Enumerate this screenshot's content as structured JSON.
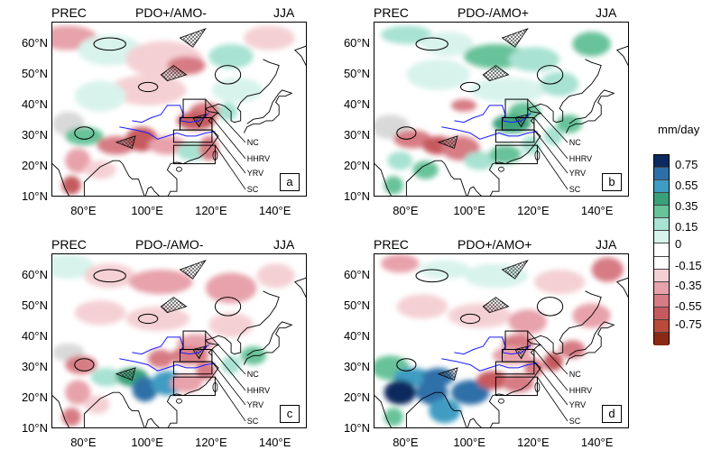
{
  "panels": [
    {
      "left": "PREC",
      "center": "PDO+/AMO-",
      "right": "JJA",
      "letter": "a"
    },
    {
      "left": "PREC",
      "center": "PDO-/AMO+",
      "right": "JJA",
      "letter": "b"
    },
    {
      "left": "PREC",
      "center": "PDO-/AMO-",
      "right": "JJA",
      "letter": "c"
    },
    {
      "left": "PREC",
      "center": "PDO+/AMO+",
      "right": "JJA",
      "letter": "d"
    }
  ],
  "lat_labels": [
    "60°N",
    "50°N",
    "40°N",
    "30°N",
    "20°N",
    "10°N"
  ],
  "lon_labels": [
    "80°E",
    "100°E",
    "120°E",
    "140°E"
  ],
  "regions": [
    "NC",
    "HHRV",
    "YRV",
    "SC"
  ],
  "colorbar": {
    "unit": "mm/day",
    "labels": [
      "0.75",
      "0.55",
      "0.35",
      "0.15",
      "0",
      "-0.15",
      "-0.35",
      "-0.55",
      "-0.75"
    ],
    "colors": [
      "#0c2a5e",
      "#2d6fa8",
      "#3f9cc2",
      "#3aa07a",
      "#68c29a",
      "#a8e2d2",
      "#d8f3ec",
      "#ffffff",
      "#ffffff",
      "#f4d0d4",
      "#e7a2ab",
      "#d77b84",
      "#c65a5f",
      "#b84a3c",
      "#8a2a14"
    ]
  }
}
